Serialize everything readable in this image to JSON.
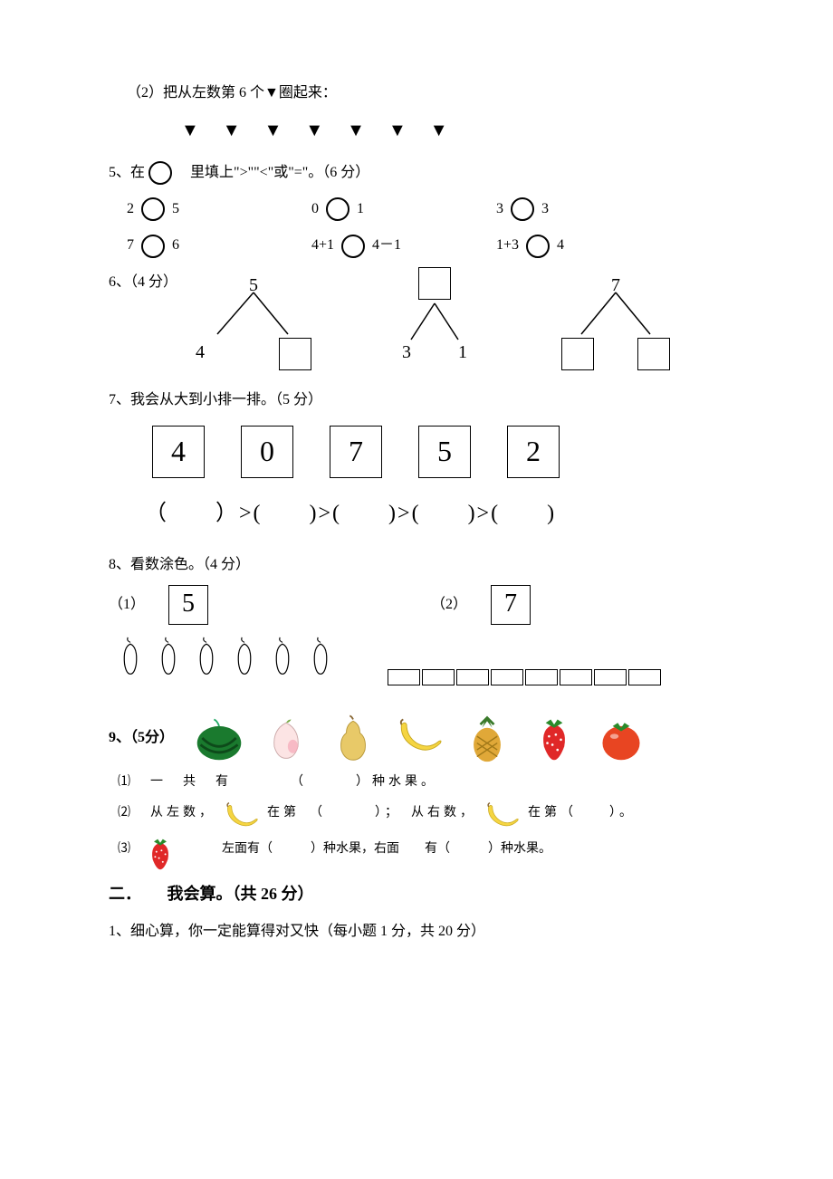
{
  "q2": {
    "text": "（2）把从左数第 6 个▼圈起来：",
    "triangles": "▼▼▼▼▼▼▼"
  },
  "q5": {
    "label": "5、",
    "suffix": "里填上\">\"\"<\"或\"=\"。（6 分）",
    "row1": {
      "a": "2",
      "b": "5",
      "c": "0",
      "d": "1",
      "e": "3",
      "f": "3"
    },
    "row2": {
      "a": "7",
      "b": "6",
      "c": "4+1",
      "d": "4－1",
      "e": "1+3",
      "f": "4"
    }
  },
  "q6": {
    "label": "6、（4 分）",
    "t1_top": "5",
    "t1_bl": "4",
    "t2_bl": "3",
    "t2_br": "1",
    "t3_top": "7"
  },
  "q7": {
    "title": "7、我会从大到小排一排。（5 分）",
    "nums": [
      "4",
      "0",
      "7",
      "5",
      "2"
    ],
    "order": "（　　）>(　　)>(　　)>(　　)>(　　)"
  },
  "q8": {
    "title": "8、看数涂色。（4 分）",
    "sub1": "（1）",
    "n1": "5",
    "sub2": "（2）",
    "n2": "7",
    "pepper_count": 6,
    "rect_count": 8
  },
  "q9": {
    "label": "9、（5分）",
    "s1": "⑴　一　共　有　　　　（　　　）种水果。",
    "s2a": "⑵　从左数，",
    "s2b": "在第　（　　　）；　从右数，",
    "s2c": "在第（　　）。",
    "s3a": "⑶",
    "s3b": "左面有（　　　）种水果，右面　　有（　　　）种水果。"
  },
  "sec2": {
    "heading_num": "二．",
    "heading_text": "我会算。（共 26 分）",
    "sub1": "1、细心算，你一定能算得对又快（每小题 1 分，共 20 分）"
  },
  "colors": {
    "watermelon_body": "#1a7a2e",
    "watermelon_stripe": "#0d4a1a",
    "peach": "#fce4e4",
    "peach_tip": "#f5a8b8",
    "pear": "#e8c968",
    "banana": "#f5d542",
    "pineapple_body": "#e0a838",
    "pineapple_leaf": "#3a7a2a",
    "strawberry": "#e02828",
    "strawberry_leaf": "#2a8a2a",
    "tomato": "#e84522",
    "tomato_leaf": "#2a8a2a"
  }
}
